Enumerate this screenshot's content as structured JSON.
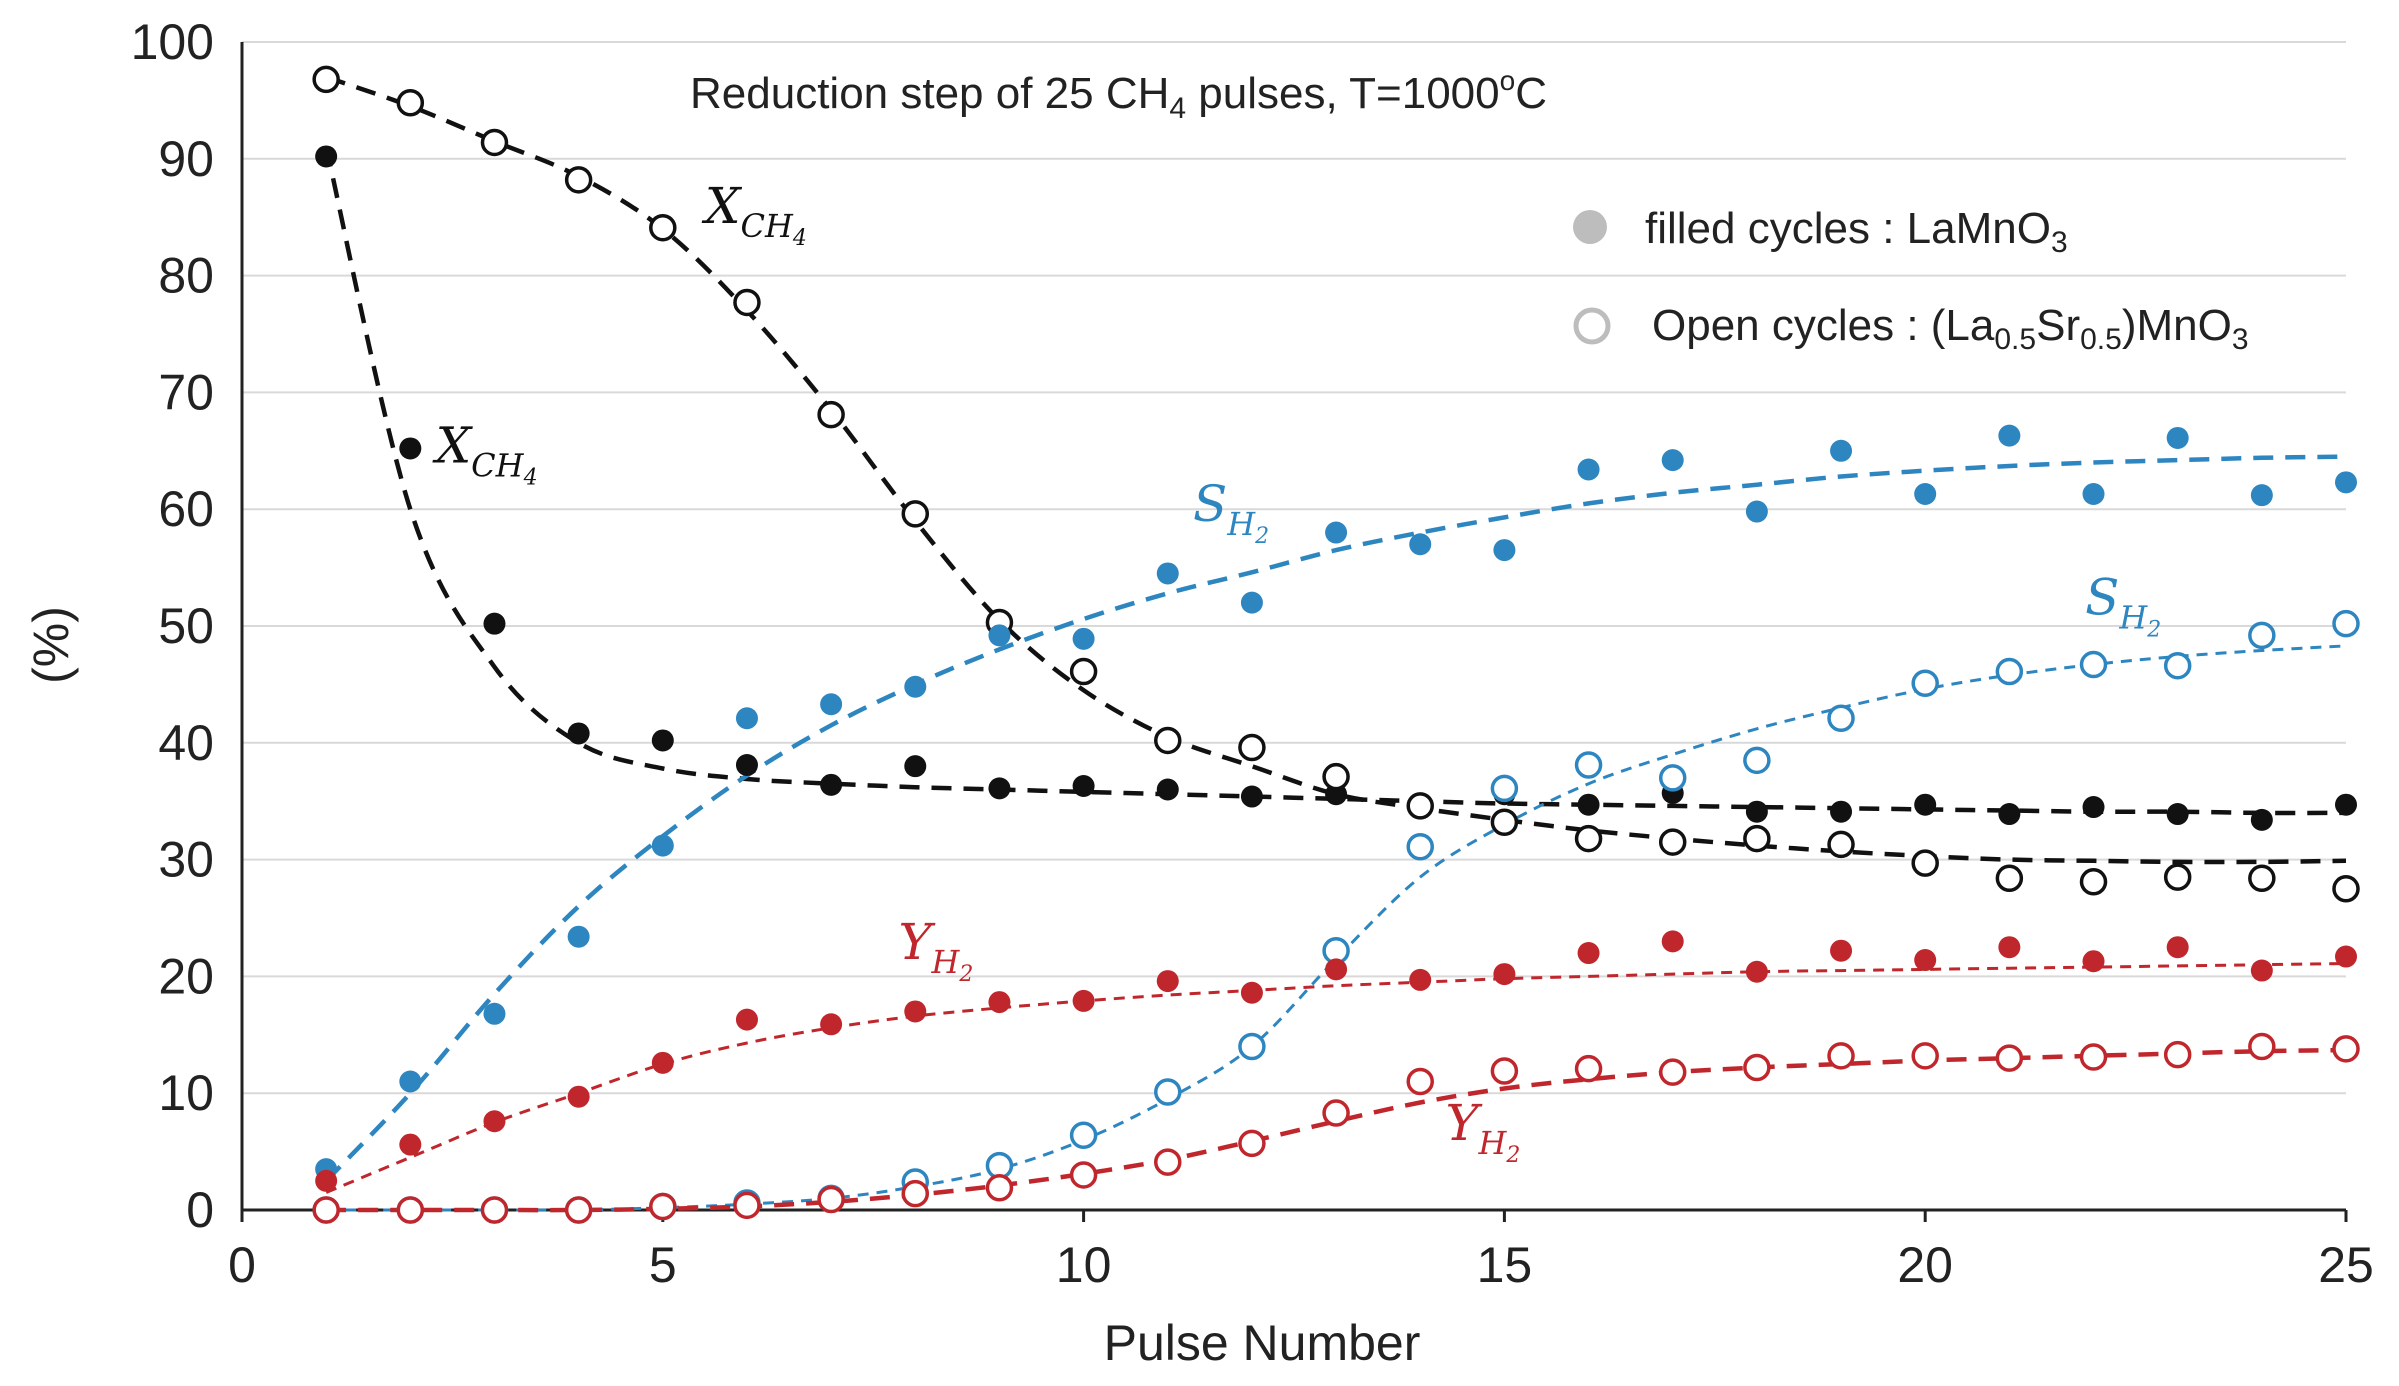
{
  "chart_data": {
    "type": "scatter",
    "title": {
      "main": "Reduction step of 25 CH",
      "sub": "4",
      "rest": " pulses, T=1000",
      "sup": "o",
      "end": "C"
    },
    "xlabel": "Pulse Number",
    "ylabel": "(%)",
    "xlim": [
      0,
      25
    ],
    "ylim": [
      0,
      100
    ],
    "xticks": [
      0,
      5,
      10,
      15,
      20,
      25
    ],
    "yticks": [
      0,
      10,
      20,
      30,
      40,
      50,
      60,
      70,
      80,
      90,
      100
    ],
    "grid": "horizontal",
    "legend": {
      "filled": {
        "text": "filled cycles : LaMnO",
        "sub": "3"
      },
      "open": {
        "pre": "Open cycles : (La",
        "sub1": "0.5",
        "mid": "Sr",
        "sub2": "0.5",
        "post": ")MnO",
        "sub3": "3"
      }
    },
    "colors": {
      "black": "#111111",
      "blue": "#2e86c1",
      "red": "#c0272d",
      "legend_gray": "#bdbdbd"
    },
    "x": [
      1,
      2,
      3,
      4,
      5,
      6,
      7,
      8,
      9,
      10,
      11,
      12,
      13,
      14,
      15,
      16,
      17,
      18,
      19,
      20,
      21,
      22,
      23,
      24,
      25
    ],
    "series": [
      {
        "name": "X_CH4 LaMnO3",
        "material": "LaMnO3",
        "marker": "filled",
        "color": "black",
        "values": [
          90.2,
          65.2,
          50.2,
          40.8,
          40.2,
          38.1,
          36.4,
          38.0,
          36.1,
          36.3,
          36.0,
          35.4,
          35.6,
          34.6,
          35.6,
          34.7,
          35.7,
          34.1,
          34.1,
          34.7,
          33.9,
          34.5,
          33.9,
          33.4,
          34.7
        ],
        "trend": [
          91,
          60,
          46.5,
          40,
          37.8,
          36.9,
          36.5,
          36.2,
          36,
          35.8,
          35.6,
          35.4,
          35.2,
          35,
          34.8,
          34.7,
          34.6,
          34.5,
          34.4,
          34.3,
          34.2,
          34.1,
          34.1,
          34,
          34
        ]
      },
      {
        "name": "X_CH4 (La0.5Sr0.5)MnO3",
        "material": "(La0.5Sr0.5)MnO3",
        "marker": "open",
        "color": "black",
        "values": [
          96.8,
          94.8,
          91.4,
          88.2,
          84.1,
          77.7,
          68.1,
          59.6,
          50.3,
          46.1,
          40.2,
          39.6,
          37.1,
          34.6,
          33.2,
          31.8,
          31.5,
          31.8,
          31.3,
          29.7,
          28.4,
          28.1,
          28.5,
          28.4,
          27.5
        ],
        "trend": [
          97,
          94.5,
          91.5,
          88.5,
          84,
          77,
          68.5,
          59,
          50.5,
          44.5,
          40.5,
          38,
          35.6,
          34.4,
          33.4,
          32.5,
          31.8,
          31.2,
          30.7,
          30.3,
          30,
          29.9,
          29.8,
          29.8,
          29.9
        ]
      },
      {
        "name": "S_H2 LaMnO3",
        "material": "LaMnO3",
        "marker": "filled",
        "color": "blue",
        "values": [
          3.5,
          11.0,
          16.8,
          23.4,
          31.2,
          42.1,
          43.3,
          44.8,
          49.2,
          48.9,
          54.5,
          52.0,
          58.0,
          57.0,
          56.5,
          63.4,
          64.2,
          59.8,
          65.0,
          61.3,
          66.3,
          61.3,
          66.1,
          61.2,
          62.3
        ],
        "trend": [
          2.5,
          10,
          18.5,
          26,
          32,
          37.2,
          41.5,
          45,
          48,
          50.6,
          52.8,
          54.6,
          56.5,
          58,
          59.3,
          60.5,
          61.4,
          62.1,
          62.8,
          63.3,
          63.7,
          64,
          64.2,
          64.4,
          64.5
        ]
      },
      {
        "name": "S_H2 (La0.5Sr0.5)MnO3",
        "material": "(La0.5Sr0.5)MnO3",
        "marker": "open",
        "color": "blue",
        "values": [
          0,
          0,
          0,
          0,
          0.3,
          0.6,
          1.0,
          2.4,
          3.8,
          6.4,
          10.1,
          14.0,
          22.2,
          31.1,
          36.1,
          38.1,
          37.0,
          38.5,
          42.1,
          45.1,
          46.1,
          46.7,
          46.6,
          49.2,
          50.2
        ],
        "trend": [
          0,
          0,
          0,
          0,
          0.2,
          0.5,
          1,
          2,
          3.5,
          6,
          9.5,
          14,
          21.5,
          28.5,
          33,
          36.5,
          39,
          41.2,
          43,
          44.6,
          45.8,
          46.7,
          47.4,
          47.9,
          48.3
        ]
      },
      {
        "name": "Y_H2 LaMnO3",
        "material": "LaMnO3",
        "marker": "filled",
        "color": "red",
        "values": [
          2.5,
          5.6,
          7.6,
          9.7,
          12.6,
          16.3,
          15.9,
          17.0,
          17.8,
          17.9,
          19.6,
          18.6,
          20.6,
          19.7,
          20.2,
          22.0,
          23.0,
          20.4,
          22.2,
          21.4,
          22.5,
          21.3,
          22.5,
          20.5,
          21.7
        ],
        "trend": [
          1.5,
          4.5,
          7.5,
          10,
          12.5,
          14.3,
          15.6,
          16.6,
          17.3,
          17.9,
          18.4,
          18.8,
          19.2,
          19.5,
          19.8,
          20,
          20.2,
          20.4,
          20.5,
          20.6,
          20.7,
          20.8,
          20.9,
          21,
          21.1
        ]
      },
      {
        "name": "Y_H2 (La0.5Sr0.5)MnO3",
        "material": "(La0.5Sr0.5)MnO3",
        "marker": "open",
        "color": "red",
        "values": [
          0,
          0,
          0,
          0,
          0.3,
          0.4,
          0.9,
          1.4,
          1.9,
          3.0,
          4.1,
          5.7,
          8.3,
          11.0,
          11.9,
          12.1,
          11.8,
          12.2,
          13.2,
          13.2,
          13.0,
          13.1,
          13.3,
          14.0,
          13.8
        ],
        "trend": [
          0,
          0,
          0,
          0,
          0.1,
          0.3,
          0.7,
          1.3,
          2.1,
          3.1,
          4.3,
          5.9,
          7.6,
          9.2,
          10.4,
          11.2,
          11.8,
          12.2,
          12.5,
          12.8,
          13,
          13.2,
          13.4,
          13.6,
          13.7
        ]
      }
    ],
    "annotations": [
      {
        "id": "xch4-open",
        "base": "X",
        "sub": "CH",
        "subsub": "4",
        "color": "black",
        "at": [
          5.5,
          84.5
        ]
      },
      {
        "id": "xch4-filled",
        "base": "X",
        "sub": "CH",
        "subsub": "4",
        "color": "black",
        "at": [
          2.3,
          64
        ]
      },
      {
        "id": "sh2-filled",
        "base": "S",
        "sub": "H",
        "subsub": "2",
        "color": "blue",
        "at": [
          11.3,
          59
        ]
      },
      {
        "id": "sh2-open",
        "base": "S",
        "sub": "H",
        "subsub": "2",
        "color": "blue",
        "at": [
          21.9,
          51
        ]
      },
      {
        "id": "yh2-filled",
        "base": "Y",
        "sub": "H",
        "subsub": "2",
        "color": "red",
        "at": [
          7.8,
          21.5
        ]
      },
      {
        "id": "yh2-open",
        "base": "Y",
        "sub": "H",
        "subsub": "2",
        "color": "red",
        "at": [
          14.3,
          6
        ]
      }
    ]
  }
}
